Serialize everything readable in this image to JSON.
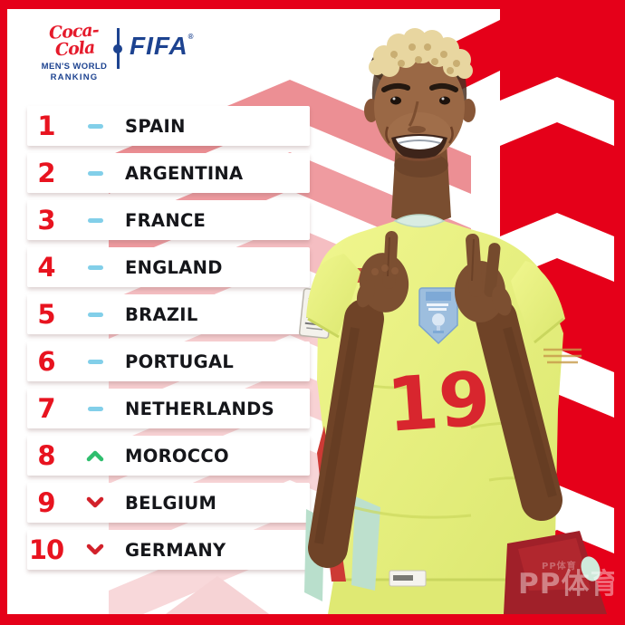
{
  "header": {
    "brand_script": "Coca-Cola",
    "brand_line1": "MEN'S WORLD",
    "brand_line2": "RANKING",
    "org_name": "FIFA",
    "org_mark": "®"
  },
  "ranking": {
    "rows": [
      {
        "rank": "1",
        "change": "same",
        "country": "SPAIN"
      },
      {
        "rank": "2",
        "change": "same",
        "country": "ARGENTINA"
      },
      {
        "rank": "3",
        "change": "same",
        "country": "FRANCE"
      },
      {
        "rank": "4",
        "change": "same",
        "country": "ENGLAND"
      },
      {
        "rank": "5",
        "change": "same",
        "country": "BRAZIL"
      },
      {
        "rank": "6",
        "change": "same",
        "country": "PORTUGAL"
      },
      {
        "rank": "7",
        "change": "same",
        "country": "NETHERLANDS"
      },
      {
        "rank": "8",
        "change": "up",
        "country": "MOROCCO"
      },
      {
        "rank": "9",
        "change": "down",
        "country": "BELGIUM"
      },
      {
        "rank": "10",
        "change": "down",
        "country": "GERMANY"
      }
    ],
    "change_icons": {
      "same": "no-change-dash-icon",
      "up": "rank-up-chevron-icon",
      "down": "rank-down-chevron-icon"
    }
  },
  "player": {
    "shirt_number": "19"
  },
  "watermark": {
    "text": "PP体育",
    "small_text": "PP体育"
  },
  "colors": {
    "frame_red": "#e50019",
    "chevron_salmon": "#ec8f94",
    "chevron_light_pink": "#f5c3c6",
    "rank_red": "#e8131f",
    "no_change_blue": "#82cfe9",
    "up_green": "#2fbe6e",
    "down_red": "#d2212a",
    "country_text": "#15161a",
    "fifa_navy": "#1d4390",
    "coke_red": "#e51a2b",
    "jersey_lime": "#e6ef7d",
    "shirt_number_red": "#d8262e"
  }
}
